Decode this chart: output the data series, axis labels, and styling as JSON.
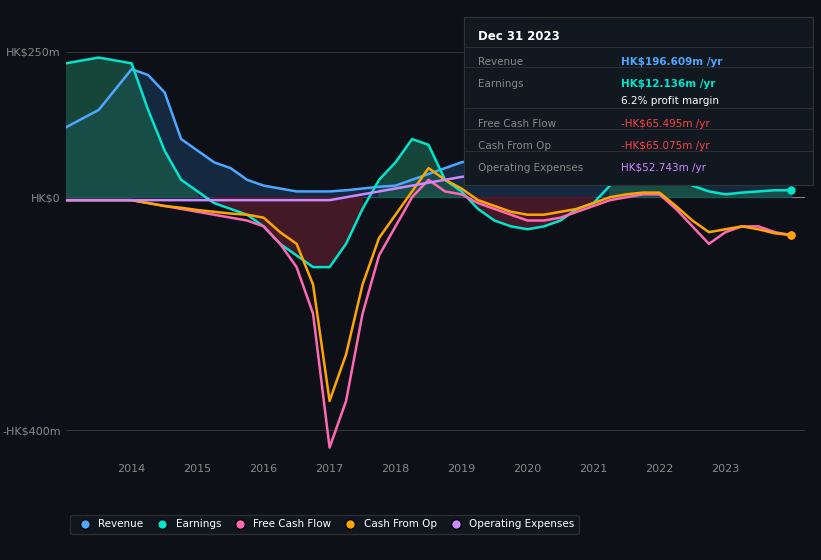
{
  "bg_color": "#0d1117",
  "plot_bg_color": "#0d1117",
  "years": [
    2013.0,
    2013.5,
    2014.0,
    2014.25,
    2014.5,
    2014.75,
    2015.0,
    2015.25,
    2015.5,
    2015.75,
    2016.0,
    2016.25,
    2016.5,
    2016.75,
    2017.0,
    2017.25,
    2017.5,
    2017.75,
    2018.0,
    2018.25,
    2018.5,
    2018.75,
    2019.0,
    2019.25,
    2019.5,
    2019.75,
    2020.0,
    2020.25,
    2020.5,
    2020.75,
    2021.0,
    2021.25,
    2021.5,
    2021.75,
    2022.0,
    2022.25,
    2022.5,
    2022.75,
    2023.0,
    2023.25,
    2023.5,
    2023.75,
    2024.0
  ],
  "revenue": [
    120,
    150,
    220,
    210,
    180,
    100,
    80,
    60,
    50,
    30,
    20,
    15,
    10,
    10,
    10,
    12,
    15,
    18,
    20,
    30,
    40,
    50,
    60,
    65,
    65,
    65,
    70,
    80,
    90,
    100,
    110,
    130,
    150,
    160,
    160,
    165,
    170,
    175,
    180,
    185,
    190,
    195,
    197
  ],
  "earnings": [
    230,
    240,
    230,
    150,
    80,
    30,
    10,
    -10,
    -20,
    -30,
    -50,
    -80,
    -100,
    -120,
    -120,
    -80,
    -20,
    30,
    60,
    100,
    90,
    30,
    10,
    -20,
    -40,
    -50,
    -55,
    -50,
    -40,
    -20,
    -10,
    20,
    80,
    100,
    80,
    40,
    20,
    10,
    5,
    8,
    10,
    12,
    12
  ],
  "free_cash_flow": [
    -5,
    -5,
    -5,
    -10,
    -15,
    -20,
    -25,
    -30,
    -35,
    -40,
    -50,
    -80,
    -120,
    -200,
    -430,
    -350,
    -200,
    -100,
    -50,
    0,
    30,
    10,
    5,
    -10,
    -20,
    -30,
    -40,
    -40,
    -35,
    -25,
    -15,
    -5,
    0,
    5,
    5,
    -20,
    -50,
    -80,
    -60,
    -50,
    -50,
    -60,
    -65
  ],
  "cash_from_op": [
    -5,
    -5,
    -5,
    -10,
    -15,
    -18,
    -22,
    -25,
    -28,
    -30,
    -35,
    -60,
    -80,
    -150,
    -350,
    -270,
    -150,
    -70,
    -30,
    10,
    50,
    30,
    15,
    -5,
    -15,
    -25,
    -30,
    -30,
    -25,
    -20,
    -10,
    0,
    5,
    8,
    8,
    -15,
    -40,
    -60,
    -55,
    -50,
    -55,
    -62,
    -65
  ],
  "op_expenses": [
    -5,
    -5,
    -5,
    -5,
    -5,
    -5,
    -5,
    -5,
    -5,
    -5,
    -5,
    -5,
    -5,
    -5,
    -5,
    0,
    5,
    10,
    15,
    20,
    25,
    30,
    35,
    38,
    40,
    42,
    43,
    44,
    45,
    46,
    47,
    48,
    50,
    50,
    50,
    50,
    50,
    50,
    50,
    51,
    52,
    53,
    53
  ],
  "revenue_color": "#4da6ff",
  "earnings_color": "#00e5cc",
  "free_cash_flow_color": "#ff69b4",
  "cash_from_op_color": "#ffa500",
  "op_expenses_color": "#cc88ff",
  "fill_color_revenue": "#1a3a5c",
  "fill_color_earnings_pos": "#1a5c4a",
  "fill_color_earnings_neg": "#4a1a2a",
  "ytick_labels": [
    "HK$250m",
    "HK$0",
    "-HK$400m"
  ],
  "ytick_vals": [
    250,
    0,
    -400
  ],
  "ylim": [
    -450,
    310
  ],
  "xlim": [
    2013.0,
    2024.2
  ],
  "xtick_labels": [
    "2014",
    "2015",
    "2016",
    "2017",
    "2018",
    "2019",
    "2020",
    "2021",
    "2022",
    "2023"
  ],
  "xtick_vals": [
    2014,
    2015,
    2016,
    2017,
    2018,
    2019,
    2020,
    2021,
    2022,
    2023
  ],
  "legend_labels": [
    "Revenue",
    "Earnings",
    "Free Cash Flow",
    "Cash From Op",
    "Operating Expenses"
  ],
  "legend_colors": [
    "#4da6ff",
    "#00e5cc",
    "#ff69b4",
    "#ffa500",
    "#cc88ff"
  ],
  "info_box": {
    "date": "Dec 31 2023",
    "rows": [
      {
        "label": "Revenue",
        "value": "HK$196.609m /yr",
        "value_color": "#4da6ff",
        "bold": true
      },
      {
        "label": "Earnings",
        "value": "HK$12.136m /yr",
        "value_color": "#00e5cc",
        "bold": true
      },
      {
        "label": "",
        "value": "6.2% profit margin",
        "value_color": "#ffffff",
        "bold": false
      },
      {
        "label": "Free Cash Flow",
        "value": "-HK$65.495m /yr",
        "value_color": "#ff4444",
        "bold": false
      },
      {
        "label": "Cash From Op",
        "value": "-HK$65.075m /yr",
        "value_color": "#ff4444",
        "bold": false
      },
      {
        "label": "Operating Expenses",
        "value": "HK$52.743m /yr",
        "value_color": "#cc88ff",
        "bold": false
      }
    ]
  }
}
